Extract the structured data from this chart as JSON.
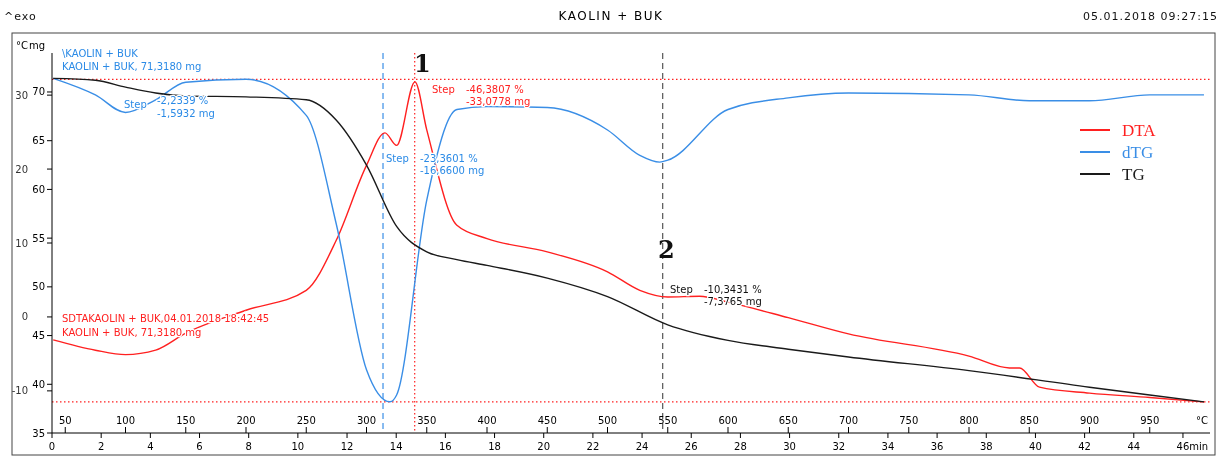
{
  "chart_data": {
    "type": "line",
    "title": "KAOLIN + BUK",
    "xlabel": "°C",
    "x2label": "min",
    "ylabel": "mg",
    "y2label": "°C",
    "xlim": [
      39,
      1000
    ],
    "xticks": [
      50,
      100,
      150,
      200,
      250,
      300,
      350,
      400,
      450,
      500,
      550,
      600,
      650,
      700,
      750,
      800,
      850,
      900,
      950
    ],
    "x2lim": [
      0,
      47.1
    ],
    "x2ticks": [
      0,
      2,
      4,
      6,
      8,
      10,
      12,
      14,
      16,
      18,
      20,
      22,
      24,
      26,
      28,
      30,
      32,
      34,
      36,
      38,
      40,
      42,
      44,
      46
    ],
    "ylim": [
      35,
      74
    ],
    "yticks": [
      35,
      40,
      45,
      50,
      55,
      60,
      65,
      70
    ],
    "y2lim": [
      -15.7,
      35.7
    ],
    "y2ticks": [
      -10,
      0,
      10,
      20,
      30
    ],
    "legend": "right",
    "grid": false,
    "series": [
      {
        "name": "DTA",
        "color": "#ff2020",
        "axis": "y2",
        "x": [
          40,
          75,
          100,
          125,
          150,
          200,
          250,
          275,
          300,
          315.3,
          325,
          340.2,
          350,
          375,
          400,
          450,
          500,
          526.8,
          550,
          576.5,
          600,
          650,
          700,
          800,
          833.6,
          841.9,
          858.5,
          900,
          950,
          995
        ],
        "values": [
          -3.1,
          -4.5,
          -5.1,
          -4.5,
          -2.2,
          0.9,
          3.6,
          10.4,
          20.5,
          24.9,
          23.2,
          31.8,
          25.3,
          12.4,
          10.6,
          8.8,
          6.1,
          3.6,
          2.7,
          2.8,
          2.0,
          -0.1,
          -2.3,
          -5.3,
          -6.9,
          -6.9,
          -9.5,
          -10.3,
          -10.9,
          -11.5
        ]
      },
      {
        "name": "dTG",
        "color": "#3a8ee6",
        "x": [
          40,
          75,
          100,
          125,
          150,
          200,
          250,
          275,
          300,
          319.5,
          325,
          350,
          375,
          400,
          450,
          500,
          526.8,
          543.4,
          550,
          600,
          650,
          700,
          800,
          850,
          900,
          950,
          995
        ],
        "values": [
          71.4,
          69.7,
          67.9,
          69.2,
          71.0,
          71.3,
          67.6,
          56.4,
          41.5,
          38.2,
          38.9,
          58.9,
          68.2,
          68.5,
          68.4,
          66.1,
          63.5,
          62.8,
          63.0,
          68.2,
          69.4,
          69.9,
          69.7,
          69.1,
          69.1,
          69.7,
          69.7
        ]
      },
      {
        "name": "TG",
        "color": "#1a1a1a",
        "x": [
          40,
          75,
          100,
          125,
          150,
          200,
          250,
          275,
          300,
          325,
          350,
          375,
          400,
          450,
          500,
          550,
          600,
          650,
          700,
          800,
          900,
          950,
          995
        ],
        "values": [
          71.4,
          71.2,
          70.5,
          69.9,
          69.6,
          69.5,
          69.2,
          67.1,
          62.5,
          56.2,
          53.6,
          52.8,
          52.2,
          50.9,
          49.0,
          46.1,
          44.5,
          43.6,
          42.8,
          41.4,
          39.7,
          38.9,
          38.2
        ]
      }
    ],
    "ref_lines": [
      {
        "axis": "x",
        "value": 340,
        "label": null,
        "color": "#ff2020",
        "line_style": "dotted"
      },
      {
        "axis": "y",
        "value": 71.3,
        "label": null,
        "color": "#ff2020",
        "line_style": "dotted"
      },
      {
        "axis": "y",
        "value": 38.2,
        "label": null,
        "color": "#ff2020",
        "line_style": "dotted"
      },
      {
        "axis": "x",
        "value": 313.7,
        "label": null,
        "color": "#3a8ee6",
        "line_style": "dashed"
      },
      {
        "axis": "x",
        "value": 545.8,
        "label": null,
        "color": "#555555",
        "line_style": "dashed"
      }
    ],
    "annotations": [
      "^exo",
      "05.01.2018 09:27:15",
      "\\KAOLIN + BUK",
      "KAOLIN + BUK, 71,3180 mg",
      "Step",
      "-2,2339 %",
      "-1,5932 mg",
      "1",
      "Step",
      "-46,3807 %",
      "-33,0778 mg",
      "Step",
      "-23,3601 %",
      "-16,6600 mg",
      "2",
      "Step",
      "-10,3431 %",
      "-7,3765 mg",
      "SDTAKAOLIN + BUK,04.01.2018 18:42:45",
      "KAOLIN + BUK, 71,3180 mg"
    ]
  }
}
